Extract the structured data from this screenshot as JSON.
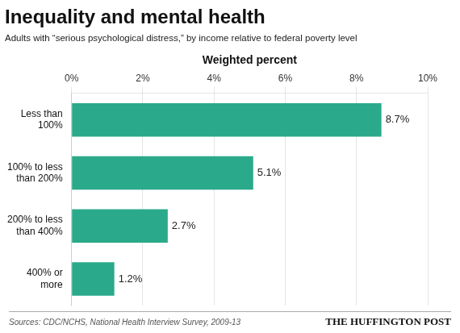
{
  "chart_data": {
    "type": "bar",
    "orientation": "horizontal",
    "title": "Inequality and mental health",
    "subtitle": "Adults with “serious psychological distress,” by income relative to federal poverty level",
    "xlabel": "Weighted percent",
    "categories": [
      "Less than\n100%",
      "100% to less\nthan 200%",
      "200% to less\nthan 400%",
      "400% or\nmore"
    ],
    "values": [
      8.7,
      5.1,
      2.7,
      1.2
    ],
    "value_labels": [
      "8.7%",
      "5.1%",
      "2.7%",
      "1.2%"
    ],
    "data_labels": true,
    "color": "#2aaa8a",
    "xlim": [
      0,
      10
    ],
    "xticks": [
      {
        "value": 0,
        "label": "0%"
      },
      {
        "value": 2,
        "label": "2%"
      },
      {
        "value": 4,
        "label": "4%"
      },
      {
        "value": 6,
        "label": "6%"
      },
      {
        "value": 8,
        "label": "8%"
      },
      {
        "value": 10,
        "label": "10%"
      }
    ],
    "grid": true,
    "source": "Sources: CDC/NCHS, National Health Interview Survey, 2009-13",
    "logo": "THE HUFFINGTON POST"
  }
}
